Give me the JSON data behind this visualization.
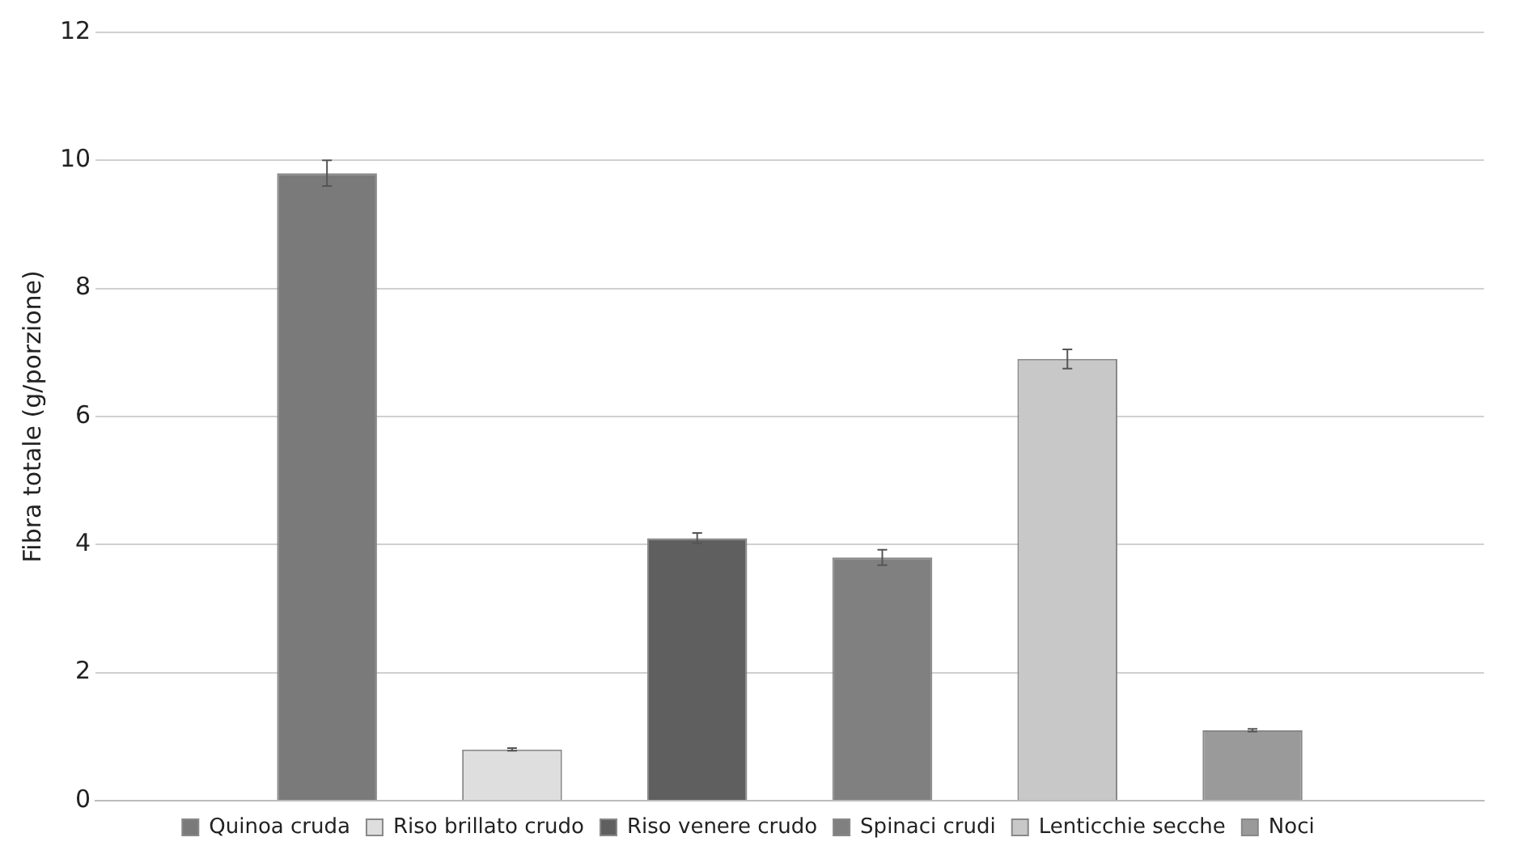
{
  "chart_data": {
    "type": "bar",
    "ylabel": "Fibra totale (g/porzione)",
    "categories": [
      null
    ],
    "series": [
      {
        "name": "Quinoa cruda",
        "color": "#7a7a7a",
        "values": [
          9.8
        ],
        "errors": [
          0.2
        ]
      },
      {
        "name": "Riso brillato crudo",
        "color": "#dedede",
        "values": [
          0.8
        ],
        "errors": [
          0.02
        ]
      },
      {
        "name": "Riso venere crudo",
        "color": "#5f5f5f",
        "values": [
          4.1
        ],
        "errors": [
          0.08
        ]
      },
      {
        "name": "Spinaci crudi",
        "color": "#808080",
        "values": [
          3.8
        ],
        "errors": [
          0.12
        ]
      },
      {
        "name": "Lenticchie secche",
        "color": "#c8c8c8",
        "values": [
          6.9
        ],
        "errors": [
          0.15
        ]
      },
      {
        "name": "Noci",
        "color": "#9a9a9a",
        "values": [
          1.1
        ],
        "errors": [
          0.02
        ]
      }
    ],
    "ylim": [
      0,
      12
    ],
    "yticks": [
      0,
      2,
      4,
      6,
      8,
      10,
      12
    ],
    "grid": "y",
    "legend": "bottom",
    "tick_labels": "y"
  }
}
